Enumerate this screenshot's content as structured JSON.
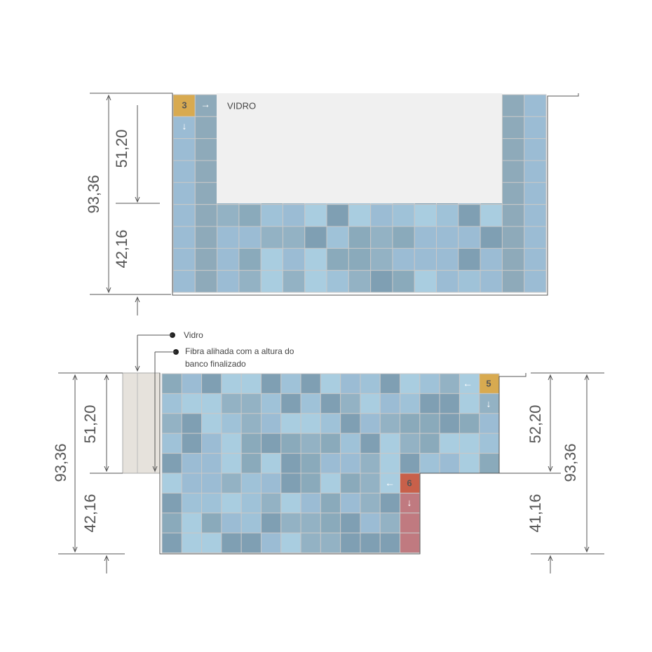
{
  "top_view": {
    "tile_number": "3",
    "arrow_right": "→",
    "arrow_down": "↓",
    "glass_label": "VIDRO",
    "dimensions": {
      "upper": "51,20",
      "total": "93,36",
      "lower": "42,16"
    }
  },
  "bottom_view": {
    "notes": {
      "glass": "Vidro",
      "fiber": [
        "Fibra alihada com a altura do",
        "banco finalizado"
      ]
    },
    "tile_5": {
      "number": "5",
      "arrow_left": "←",
      "arrow_down": "↓"
    },
    "tile_6": {
      "number": "6",
      "arrow_left": "←",
      "arrow_down": "↓"
    },
    "left_dimensions": {
      "upper": "51,20",
      "total": "93,36",
      "lower": "42,16"
    },
    "right_dimensions": {
      "upper": "52,20",
      "total": "93,36",
      "lower": "41,16"
    }
  }
}
